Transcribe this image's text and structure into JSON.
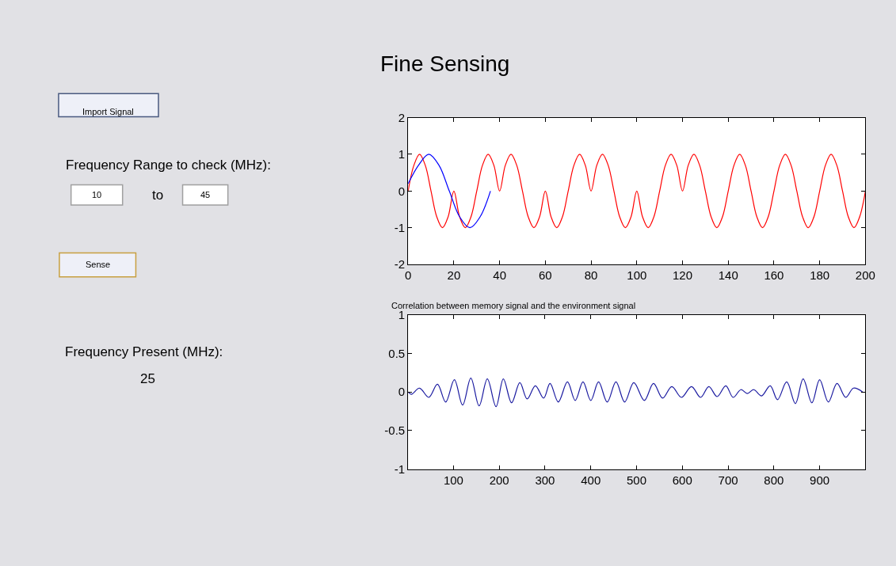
{
  "chart_data": [
    {
      "type": "other",
      "title": "Fine Sensing",
      "annotations": [
        "Import Signal",
        "Frequency Range to check (MHz):",
        "10",
        "to",
        "45",
        "Sense",
        "Frequency Present (MHz):",
        "25"
      ]
    },
    {
      "type": "line",
      "xlim": [
        0,
        200
      ],
      "ylim": [
        -2,
        2
      ],
      "xticks": [
        0,
        20,
        40,
        60,
        80,
        100,
        120,
        140,
        160,
        180,
        200
      ],
      "yticks": [
        -2,
        -1,
        0,
        1,
        2
      ],
      "series": [
        {
          "color": "#ff0000",
          "x": [
            0,
            2.5,
            5,
            7.5,
            10,
            12.5,
            15,
            17.5,
            20,
            22.5,
            25,
            27.5,
            30,
            32.5,
            35,
            37.5,
            40,
            42.5,
            45,
            47.5,
            50,
            52.5,
            55,
            57.5,
            60,
            62.5,
            65,
            67.5,
            70,
            72.5,
            75,
            77.5,
            80,
            82.5,
            85,
            87.5,
            90,
            92.5,
            95,
            97.5,
            100,
            102.5,
            105,
            107.5,
            110,
            112.5,
            115,
            117.5,
            120,
            122.5,
            125,
            127.5,
            130,
            132.5,
            135,
            137.5,
            140,
            142.5,
            145,
            147.5,
            150,
            152.5,
            155,
            157.5,
            160,
            162.5,
            165,
            167.5,
            170,
            172.5,
            175,
            177.5,
            180,
            182.5,
            185,
            187.5,
            190,
            192.5,
            195,
            197.5,
            200
          ],
          "values": [
            0,
            0.7,
            1,
            0.7,
            0,
            -0.7,
            -1,
            -0.7,
            0,
            -0.7,
            -1,
            -0.7,
            0,
            0.7,
            1,
            0.7,
            0,
            0.7,
            1,
            0.7,
            0,
            -0.7,
            -1,
            -0.7,
            0,
            -0.7,
            -1,
            -0.7,
            0,
            0.7,
            1,
            0.7,
            0,
            0.7,
            1,
            0.7,
            0,
            -0.7,
            -1,
            -0.7,
            0,
            -0.7,
            -1,
            -0.7,
            0,
            0.7,
            1,
            0.7,
            0,
            0.7,
            1,
            0.7,
            0,
            -0.7,
            -1,
            -0.7,
            0,
            0.7,
            1,
            0.7,
            0,
            -0.7,
            -1,
            -0.7,
            0,
            0.7,
            1,
            0.7,
            0,
            -0.7,
            -1,
            -0.7,
            0,
            0.7,
            1,
            0.7,
            0,
            -0.7,
            -1,
            -0.7,
            0
          ]
        },
        {
          "color": "#0000ff",
          "x": [
            0,
            4.5,
            9,
            13.5,
            18,
            22.5,
            27,
            31.5,
            36
          ],
          "values": [
            0.2,
            0.7,
            1,
            0.7,
            0,
            -0.7,
            -1,
            -0.7,
            0
          ]
        }
      ]
    },
    {
      "type": "line",
      "title": "Correlation between memory signal and the environment signal",
      "xlim": [
        1,
        1000
      ],
      "ylim": [
        -1,
        1
      ],
      "xticks": [
        100,
        200,
        300,
        400,
        500,
        600,
        700,
        800,
        900
      ],
      "yticks": [
        -1,
        -0.5,
        0,
        0.5,
        1
      ],
      "series": [
        {
          "color": "#1a1aa0",
          "x": [
            1,
            8,
            26,
            46,
            65,
            83,
            102,
            120,
            138,
            156,
            174,
            193,
            209,
            227,
            245,
            261,
            279,
            297,
            311,
            329,
            349,
            366,
            383,
            400,
            417,
            436,
            455,
            474,
            494,
            517,
            537,
            557,
            577,
            598,
            620,
            640,
            658,
            676,
            695,
            711,
            728,
            742,
            756,
            773,
            792,
            808,
            828,
            847,
            864,
            883,
            900,
            919,
            938,
            957,
            974,
            994
          ],
          "values": [
            0,
            -0.03,
            0.05,
            -0.07,
            0.1,
            -0.13,
            0.16,
            -0.17,
            0.18,
            -0.18,
            0.17,
            -0.19,
            0.17,
            -0.14,
            0.12,
            -0.09,
            0.08,
            -0.08,
            0.11,
            -0.13,
            0.13,
            -0.11,
            0.13,
            -0.11,
            0.13,
            -0.13,
            0.13,
            -0.13,
            0.12,
            -0.11,
            0.11,
            -0.08,
            0.07,
            -0.07,
            0.07,
            -0.07,
            0.07,
            -0.06,
            0.08,
            -0.07,
            0.03,
            -0.02,
            0.03,
            -0.05,
            0.08,
            -0.1,
            0.13,
            -0.15,
            0.17,
            -0.14,
            0.16,
            -0.13,
            0.11,
            -0.07,
            0.05,
            0
          ]
        }
      ]
    }
  ]
}
